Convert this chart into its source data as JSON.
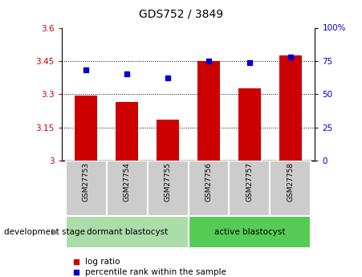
{
  "title": "GDS752 / 3849",
  "samples": [
    "GSM27753",
    "GSM27754",
    "GSM27755",
    "GSM27756",
    "GSM27757",
    "GSM27758"
  ],
  "log_ratio": [
    3.295,
    3.265,
    3.185,
    3.45,
    3.325,
    3.475
  ],
  "percentile_rank": [
    68,
    65,
    62,
    75,
    74,
    78
  ],
  "bar_color": "#cc0000",
  "dot_color": "#0000cc",
  "ylim_left": [
    3.0,
    3.6
  ],
  "ylim_right": [
    0,
    100
  ],
  "yticks_left": [
    3.0,
    3.15,
    3.3,
    3.45,
    3.6
  ],
  "ytick_labels_left": [
    "3",
    "3.15",
    "3.3",
    "3.45",
    "3.6"
  ],
  "yticks_right": [
    0,
    25,
    50,
    75,
    100
  ],
  "ytick_labels_right": [
    "0",
    "25",
    "50",
    "75",
    "100%"
  ],
  "group1_label": "dormant blastocyst",
  "group2_label": "active blastocyst",
  "group1_color": "#aaddaa",
  "group2_color": "#55cc55",
  "stage_label": "development stage",
  "legend_bar_label": "log ratio",
  "legend_dot_label": "percentile rank within the sample",
  "dotted_yticks": [
    3.15,
    3.3,
    3.45
  ],
  "bar_width": 0.55,
  "sample_box_color": "#cccccc"
}
